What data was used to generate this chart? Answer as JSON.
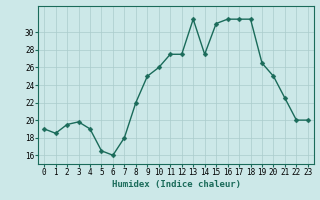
{
  "x": [
    0,
    1,
    2,
    3,
    4,
    5,
    6,
    7,
    8,
    9,
    10,
    11,
    12,
    13,
    14,
    15,
    16,
    17,
    18,
    19,
    20,
    21,
    22,
    23
  ],
  "y": [
    19,
    18.5,
    19.5,
    19.8,
    19,
    16.5,
    16,
    18,
    22,
    25,
    26,
    27.5,
    27.5,
    31.5,
    27.5,
    31,
    31.5,
    31.5,
    31.5,
    26.5,
    25,
    22.5,
    20,
    20
  ],
  "line_color": "#1a6b5a",
  "marker_color": "#1a6b5a",
  "bg_color": "#cce8e8",
  "grid_color": "#aacccc",
  "xlabel": "Humidex (Indice chaleur)",
  "ylim": [
    15,
    33
  ],
  "xlim": [
    -0.5,
    23.5
  ],
  "yticks": [
    16,
    18,
    20,
    22,
    24,
    26,
    28,
    30
  ],
  "xticks": [
    0,
    1,
    2,
    3,
    4,
    5,
    6,
    7,
    8,
    9,
    10,
    11,
    12,
    13,
    14,
    15,
    16,
    17,
    18,
    19,
    20,
    21,
    22,
    23
  ],
  "xlabel_fontsize": 6.5,
  "tick_fontsize": 5.5,
  "linewidth": 1.0,
  "markersize": 2.5
}
